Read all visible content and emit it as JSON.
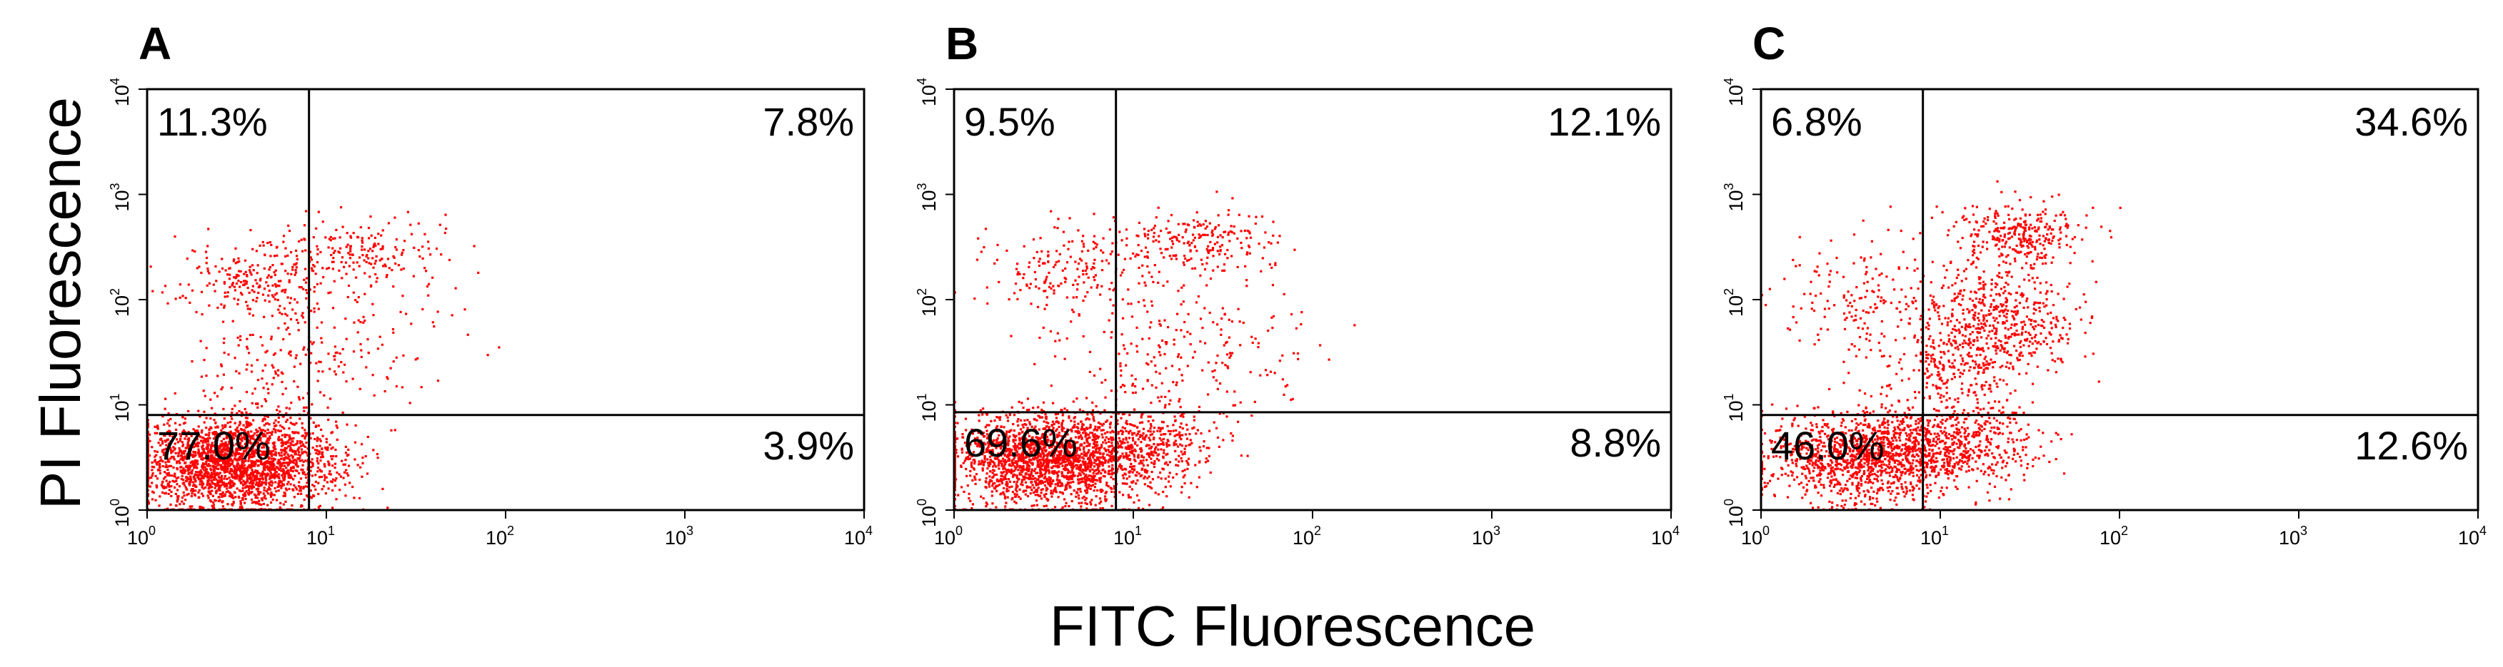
{
  "figure": {
    "xlabel": "FITC Fluorescence",
    "ylabel": "PI Fluorescence",
    "point_color": "#ff0000"
  },
  "chart_data": [
    {
      "type": "scatter",
      "panel": "A",
      "x_scale": "log",
      "y_scale": "log",
      "xlim": [
        1,
        10000
      ],
      "ylim": [
        1,
        10000
      ],
      "x_ticks": [
        1,
        10,
        100,
        1000,
        10000
      ],
      "y_ticks": [
        1,
        10,
        100,
        1000,
        10000
      ],
      "gates": {
        "x": 8,
        "y": 8
      },
      "quadrants": {
        "upper_left": "11.3%",
        "upper_right": "7.8%",
        "lower_left": "77.0%",
        "lower_right": "3.9%"
      },
      "clusters": [
        {
          "center": [
            3.2,
            2.8
          ],
          "spread": [
            0.28,
            0.22
          ],
          "weight": 0.78
        },
        {
          "center": [
            4.0,
            160
          ],
          "spread": [
            0.22,
            0.2
          ],
          "weight": 0.08
        },
        {
          "center": [
            18,
            280
          ],
          "spread": [
            0.22,
            0.16
          ],
          "weight": 0.06
        },
        {
          "center": [
            14,
            40
          ],
          "spread": [
            0.28,
            0.3
          ],
          "weight": 0.04
        },
        {
          "center": [
            4.5,
            25
          ],
          "spread": [
            0.22,
            0.3
          ],
          "weight": 0.04
        }
      ]
    },
    {
      "type": "scatter",
      "panel": "B",
      "x_scale": "log",
      "y_scale": "log",
      "xlim": [
        1,
        10000
      ],
      "ylim": [
        1,
        10000
      ],
      "x_ticks": [
        1,
        10,
        100,
        1000,
        10000
      ],
      "y_ticks": [
        1,
        10,
        100,
        1000,
        10000
      ],
      "gates": {
        "x": 8,
        "y": 8.5
      },
      "quadrants": {
        "upper_left": "9.5%",
        "upper_right": "12.1%",
        "lower_left": "69.6%",
        "lower_right": "8.8%"
      },
      "clusters": [
        {
          "center": [
            3.5,
            3.0
          ],
          "spread": [
            0.3,
            0.22
          ],
          "weight": 0.7
        },
        {
          "center": [
            13,
            4.5
          ],
          "spread": [
            0.22,
            0.2
          ],
          "weight": 0.09
        },
        {
          "center": [
            4.5,
            180
          ],
          "spread": [
            0.24,
            0.22
          ],
          "weight": 0.07
        },
        {
          "center": [
            24,
            350
          ],
          "spread": [
            0.22,
            0.15
          ],
          "weight": 0.07
        },
        {
          "center": [
            20,
            30
          ],
          "spread": [
            0.32,
            0.3
          ],
          "weight": 0.07
        }
      ]
    },
    {
      "type": "scatter",
      "panel": "C",
      "x_scale": "log",
      "y_scale": "log",
      "xlim": [
        1,
        10000
      ],
      "ylim": [
        1,
        10000
      ],
      "x_ticks": [
        1,
        10,
        100,
        1000,
        10000
      ],
      "y_ticks": [
        1,
        10,
        100,
        1000,
        10000
      ],
      "gates": {
        "x": 8,
        "y": 8
      },
      "quadrants": {
        "upper_left": "6.8%",
        "upper_right": "34.6%",
        "lower_left": "46.0%",
        "lower_right": "12.6%"
      },
      "clusters": [
        {
          "center": [
            4.0,
            3.2
          ],
          "spread": [
            0.3,
            0.22
          ],
          "weight": 0.46
        },
        {
          "center": [
            14,
            4.5
          ],
          "spread": [
            0.2,
            0.2
          ],
          "weight": 0.13
        },
        {
          "center": [
            20,
            60
          ],
          "spread": [
            0.22,
            0.28
          ],
          "weight": 0.2
        },
        {
          "center": [
            28,
            420
          ],
          "spread": [
            0.18,
            0.14
          ],
          "weight": 0.1
        },
        {
          "center": [
            12,
            20
          ],
          "spread": [
            0.16,
            0.18
          ],
          "weight": 0.05
        },
        {
          "center": [
            4.0,
            100
          ],
          "spread": [
            0.22,
            0.3
          ],
          "weight": 0.06
        }
      ]
    }
  ]
}
